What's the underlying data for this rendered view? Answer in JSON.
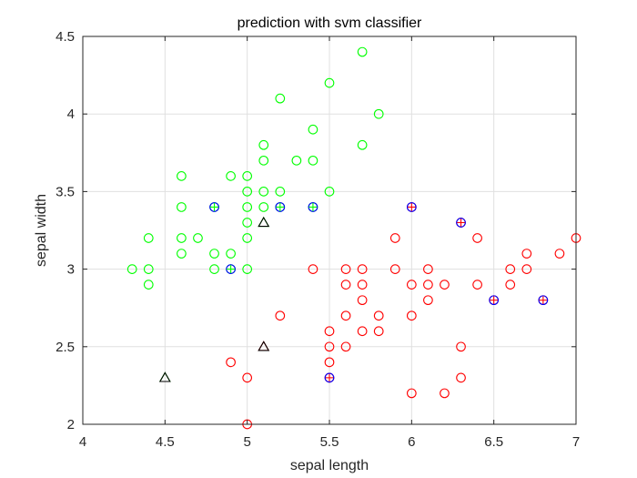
{
  "chart_data": {
    "type": "scatter",
    "title": "prediction with svm classifier",
    "xlabel": "sepal length",
    "ylabel": "sepal width",
    "xlim": [
      4,
      7
    ],
    "ylim": [
      2,
      4.5
    ],
    "xticks": [
      "4",
      "4.5",
      "5",
      "5.5",
      "6",
      "6.5",
      "7"
    ],
    "yticks": [
      "2",
      "2.5",
      "3",
      "3.5",
      "4",
      "4.5"
    ],
    "grid": true,
    "colors": {
      "setosa": "#00ff00",
      "versicolor": "#ff0000",
      "support_vector_blue": "#0000ff",
      "support_vector_red": "#ff0000",
      "misclassified": "#000000",
      "grid": "#e0e0e0",
      "axis": "#262626"
    },
    "series": [
      {
        "marker": "circle",
        "color": "#00ff00",
        "points": [
          [
            5.7,
            4.4
          ],
          [
            5.5,
            4.2
          ],
          [
            5.2,
            4.1
          ],
          [
            5.8,
            4.0
          ],
          [
            5.4,
            3.9
          ],
          [
            5.1,
            3.8
          ],
          [
            5.7,
            3.8
          ],
          [
            5.1,
            3.7
          ],
          [
            5.3,
            3.7
          ],
          [
            5.4,
            3.7
          ],
          [
            4.6,
            3.6
          ],
          [
            4.9,
            3.6
          ],
          [
            5.0,
            3.6
          ],
          [
            5.0,
            3.5
          ],
          [
            5.1,
            3.5
          ],
          [
            5.2,
            3.5
          ],
          [
            5.5,
            3.5
          ],
          [
            4.6,
            3.4
          ],
          [
            4.8,
            3.4
          ],
          [
            5.0,
            3.4
          ],
          [
            5.1,
            3.4
          ],
          [
            5.2,
            3.4
          ],
          [
            5.4,
            3.4
          ],
          [
            5.0,
            3.3
          ],
          [
            4.4,
            3.2
          ],
          [
            4.6,
            3.2
          ],
          [
            4.7,
            3.2
          ],
          [
            5.0,
            3.2
          ],
          [
            4.6,
            3.1
          ],
          [
            4.8,
            3.1
          ],
          [
            4.9,
            3.1
          ],
          [
            4.3,
            3.0
          ],
          [
            4.4,
            3.0
          ],
          [
            4.8,
            3.0
          ],
          [
            4.9,
            3.0
          ],
          [
            5.0,
            3.0
          ],
          [
            4.4,
            2.9
          ]
        ]
      },
      {
        "marker": "circle",
        "color": "#ff0000",
        "points": [
          [
            6.0,
            3.4
          ],
          [
            6.3,
            3.3
          ],
          [
            5.9,
            3.2
          ],
          [
            6.4,
            3.2
          ],
          [
            7.0,
            3.2
          ],
          [
            6.7,
            3.1
          ],
          [
            6.9,
            3.1
          ],
          [
            5.4,
            3.0
          ],
          [
            5.6,
            3.0
          ],
          [
            5.7,
            3.0
          ],
          [
            5.9,
            3.0
          ],
          [
            6.1,
            3.0
          ],
          [
            6.6,
            3.0
          ],
          [
            6.7,
            3.0
          ],
          [
            5.6,
            2.9
          ],
          [
            5.7,
            2.9
          ],
          [
            6.0,
            2.9
          ],
          [
            6.1,
            2.9
          ],
          [
            6.2,
            2.9
          ],
          [
            6.4,
            2.9
          ],
          [
            6.6,
            2.9
          ],
          [
            5.7,
            2.8
          ],
          [
            6.1,
            2.8
          ],
          [
            6.5,
            2.8
          ],
          [
            6.8,
            2.8
          ],
          [
            5.2,
            2.7
          ],
          [
            5.6,
            2.7
          ],
          [
            5.8,
            2.7
          ],
          [
            6.0,
            2.7
          ],
          [
            5.5,
            2.6
          ],
          [
            5.7,
            2.6
          ],
          [
            5.8,
            2.6
          ],
          [
            5.5,
            2.5
          ],
          [
            5.6,
            2.5
          ],
          [
            6.3,
            2.5
          ],
          [
            4.9,
            2.4
          ],
          [
            5.5,
            2.4
          ],
          [
            5.0,
            2.3
          ],
          [
            5.5,
            2.3
          ],
          [
            6.3,
            2.3
          ],
          [
            6.0,
            2.2
          ],
          [
            6.2,
            2.2
          ],
          [
            5.0,
            2.0
          ]
        ]
      },
      {
        "marker": "plus",
        "color": "#ff0000",
        "points": [
          [
            6.0,
            3.4
          ],
          [
            6.3,
            3.3
          ],
          [
            6.5,
            2.8
          ],
          [
            6.8,
            2.8
          ],
          [
            5.5,
            2.3
          ]
        ]
      },
      {
        "marker": "circle",
        "color": "#0000ff",
        "points": [
          [
            4.8,
            3.4
          ],
          [
            5.2,
            3.4
          ],
          [
            5.4,
            3.4
          ],
          [
            4.9,
            3.0
          ],
          [
            6.0,
            3.4
          ],
          [
            6.3,
            3.3
          ],
          [
            6.5,
            2.8
          ],
          [
            6.8,
            2.8
          ],
          [
            5.5,
            2.3
          ]
        ]
      },
      {
        "marker": "plus",
        "color": "#00ff00",
        "points": [
          [
            4.8,
            3.4
          ],
          [
            5.2,
            3.4
          ],
          [
            5.4,
            3.4
          ],
          [
            4.9,
            3.0
          ]
        ]
      },
      {
        "marker": "triangle",
        "color": "#00ff00",
        "points": [
          [
            5.1,
            3.3
          ],
          [
            4.5,
            2.3
          ]
        ]
      },
      {
        "marker": "triangle",
        "color": "#ff0000",
        "points": [
          [
            5.1,
            2.5
          ]
        ]
      },
      {
        "marker": "triangle",
        "color": "#000000",
        "points": [
          [
            5.1,
            3.3
          ],
          [
            4.5,
            2.3
          ],
          [
            5.1,
            2.5
          ]
        ]
      }
    ]
  }
}
